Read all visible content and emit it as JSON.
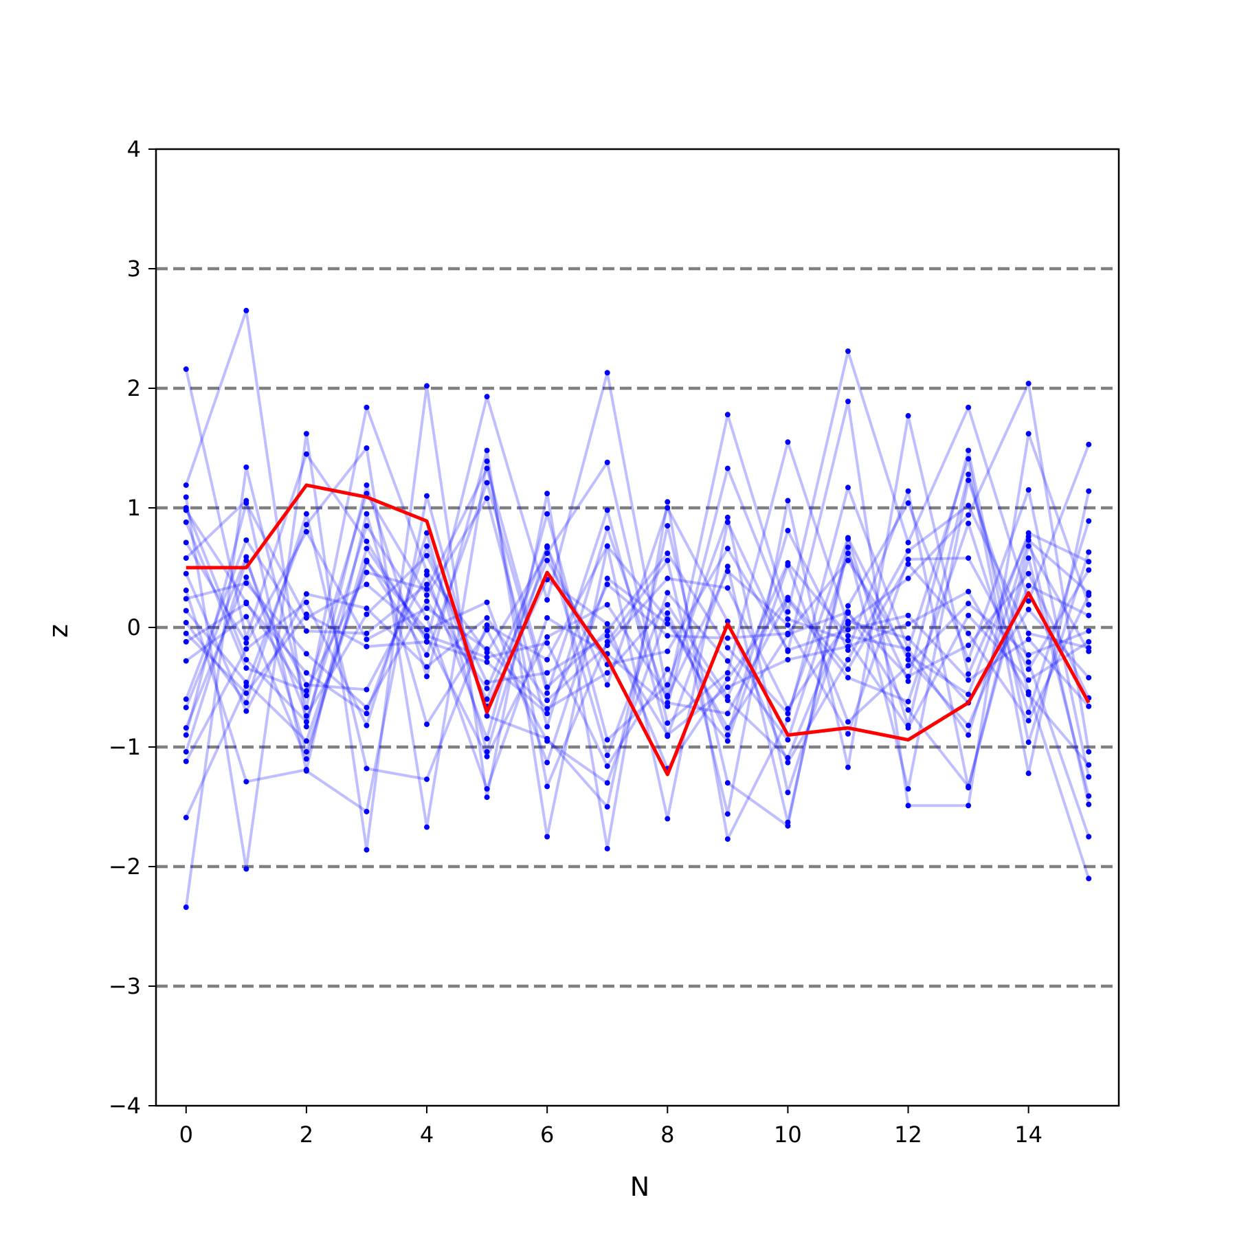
{
  "chart_data": {
    "type": "line",
    "title": "",
    "xlabel": "N",
    "ylabel": "z",
    "xlim": [
      -0.5,
      15.5
    ],
    "ylim": [
      -4,
      4
    ],
    "x_ticks": [
      0,
      2,
      4,
      6,
      8,
      10,
      12,
      14
    ],
    "x_tick_labels": [
      "0",
      "2",
      "4",
      "6",
      "8",
      "10",
      "12",
      "14"
    ],
    "y_ticks": [
      -4,
      -3,
      -2,
      -1,
      0,
      1,
      2,
      3,
      4
    ],
    "y_tick_labels": [
      "−4",
      "−3",
      "−2",
      "−1",
      "0",
      "1",
      "2",
      "3",
      "4"
    ],
    "reference_lines": {
      "y": [
        -3,
        -2,
        -1,
        0,
        1,
        2,
        3
      ],
      "style": "dashed",
      "color": "#808080"
    },
    "colors": {
      "samples": "#0000ff",
      "mean": "#ff0000",
      "reference": "#808080"
    },
    "x": [
      0,
      1,
      2,
      3,
      4,
      5,
      6,
      7,
      8,
      9,
      10,
      11,
      12,
      13,
      14,
      15
    ],
    "highlight_series": {
      "values": [
        0.5,
        0.5,
        1.19,
        1.09,
        0.89,
        -0.71,
        0.46,
        -0.26,
        -1.23,
        0.03,
        -0.9,
        -0.84,
        -0.94,
        -0.63,
        0.29,
        -0.63
      ]
    },
    "series": [
      {
        "values": [
          2.16,
          -0.09,
          1.45,
          0.72,
          -0.12,
          1.93,
          0.23,
          2.13,
          -0.57,
          1.78,
          0.13,
          2.31,
          0.71,
          1.84,
          0.22,
          1.53
        ]
      },
      {
        "values": [
          -2.34,
          1.34,
          -0.67,
          1.84,
          0.47,
          -0.21,
          0.62,
          1.38,
          -0.8,
          -0.38,
          1.55,
          0.03,
          0.41,
          0.94,
          2.04,
          -1.04
        ]
      },
      {
        "values": [
          1.19,
          2.65,
          -0.83,
          1.19,
          -0.41,
          1.48,
          -1.75,
          0.68,
          -1.6,
          0.88,
          -0.2,
          1.89,
          -1.49,
          -1.49,
          1.62,
          0.19
        ]
      },
      {
        "values": [
          1.09,
          -2.02,
          1.62,
          -1.86,
          2.02,
          -1.42,
          1.12,
          -1.85,
          1.05,
          -1.77,
          -0.77,
          1.17,
          -0.18,
          1.41,
          -1.22,
          1.14
        ]
      },
      {
        "values": [
          -1.59,
          -0.49,
          0.86,
          1.5,
          -1.67,
          1.39,
          -1.33,
          -0.12,
          0.56,
          -1.56,
          1.06,
          -1.17,
          1.77,
          -0.39,
          0.76,
          -1.48
        ]
      },
      {
        "values": [
          0.58,
          1.06,
          -1.2,
          -1.54,
          1.1,
          -0.74,
          -0.93,
          -1.5,
          0.85,
          -1.3,
          -1.66,
          0.74,
          -0.82,
          1.28,
          -0.54,
          -2.1
        ]
      },
      {
        "values": [
          -0.67,
          0.59,
          -1.04,
          0.56,
          -0.23,
          1.21,
          -0.55,
          0.98,
          -0.91,
          0.51,
          -1.63,
          0.67,
          -1.35,
          1.23,
          -0.29,
          -1.75
        ]
      },
      {
        "values": [
          0.31,
          -1.29,
          -1.19,
          0.95,
          -0.81,
          -0.02,
          -0.95,
          -1.3,
          0.12,
          -0.9,
          0.81,
          -0.19,
          1.14,
          -1.34,
          0.68,
          -0.2
        ]
      },
      {
        "values": [
          -0.84,
          0.42,
          -0.48,
          -0.52,
          0.44,
          -0.93,
          0.95,
          -0.94,
          -0.48,
          0.92,
          -1.38,
          0.18,
          1.04,
          -0.27,
          1.15,
          -1.25
        ]
      },
      {
        "values": [
          0.98,
          0.21,
          -0.57,
          1.12,
          0.27,
          1.08,
          -0.83,
          0.83,
          -0.63,
          -0.72,
          0.23,
          -0.42,
          -0.62,
          0.87,
          -0.71,
          0.89
        ]
      },
      {
        "values": [
          -1.12,
          -0.18,
          0.21,
          -0.82,
          0.79,
          -1.04,
          0.68,
          -1.07,
          0.29,
          -0.28,
          -0.94,
          0.62,
          -0.45,
          1.48,
          -0.96,
          0.63
        ]
      },
      {
        "values": [
          0.14,
          -0.46,
          -0.95,
          0.55,
          -0.02,
          0.21,
          -1.13,
          0.41,
          0.03,
          -0.61,
          -1.09,
          0.12,
          -0.41,
          -0.15,
          0.45,
          -0.59
        ]
      },
      {
        "values": [
          -0.28,
          0.09,
          -1.1,
          0.66,
          -0.08,
          -1.08,
          -0.08,
          0.19,
          -0.58,
          0.47,
          0.02,
          -0.89,
          0.57,
          0.58,
          -0.35,
          0.48
        ]
      },
      {
        "values": [
          0.71,
          -0.13,
          0.8,
          -0.1,
          0.16,
          -0.18,
          -0.68,
          -0.38,
          0.19,
          -0.58,
          0.54,
          -0.07,
          -0.18,
          -0.9,
          0.73,
          0.29
        ]
      },
      {
        "values": [
          -1.04,
          0.56,
          -0.74,
          0.11,
          0.6,
          -0.46,
          -0.38,
          -0.07,
          -0.9,
          -0.5,
          -0.27,
          -0.16,
          0.03,
          0.3,
          -0.56,
          -1.15
        ]
      },
      {
        "values": [
          0.04,
          -0.63,
          0.95,
          -1.18,
          -1.27,
          0.02,
          -0.27,
          0.68,
          0.07,
          -0.84,
          -0.06,
          0.13,
          -0.69,
          -1.33,
          0.58,
          -1.41
        ]
      },
      {
        "values": [
          -0.6,
          0.73,
          -0.03,
          -0.05,
          0.36,
          -0.6,
          0.56,
          -0.31,
          -0.2,
          0.66,
          -0.19,
          -0.02,
          0.1,
          -0.44,
          -0.1,
          -0.66
        ]
      },
      {
        "values": [
          1.0,
          -0.27,
          -0.79,
          0.85,
          0.08,
          -1.35,
          0.08,
          -0.22,
          -0.66,
          1.33,
          0.07,
          -0.11,
          -0.84,
          0.1,
          -0.44,
          -0.12
        ]
      },
      {
        "values": [
          -0.05,
          -0.55,
          0.11,
          -0.16,
          -0.12,
          -0.29,
          -0.72,
          0.36,
          -0.07,
          -0.09,
          -0.05,
          0.56,
          -0.23,
          -0.56,
          0.79,
          0.55
        ]
      },
      {
        "values": [
          0.24,
          0.37,
          -0.22,
          -0.67,
          0.22,
          -0.51,
          0.67,
          -0.48,
          1.0,
          0.05,
          -1.13,
          -0.27,
          0.64,
          1.02,
          -0.05,
          -0.17
        ]
      },
      {
        "values": [
          -0.9,
          1.04,
          0.08,
          0.36,
          -0.07,
          -0.25,
          -0.13,
          -1.16,
          -0.35,
          -0.95,
          0.52,
          -0.79,
          -0.32,
          0.2,
          -0.23,
          -0.03
        ]
      },
      {
        "values": [
          0.88,
          -0.34,
          -0.53,
          0.46,
          0.32,
          1.33,
          -0.5,
          -0.03,
          0.62,
          -0.17,
          -0.72,
          0.75,
          -0.27,
          -0.82,
          0.35,
          0.1
        ]
      },
      {
        "values": [
          -0.12,
          0.2,
          -0.38,
          -0.72,
          0.68,
          -0.66,
          0.4,
          0.03,
          -1.18,
          -0.43,
          0.25,
          -0.35,
          0.53,
          -0.05,
          -0.78,
          0.27
        ]
      },
      {
        "values": [
          0.45,
          -0.7,
          0.28,
          0.16,
          -0.33,
          0.08,
          -0.61,
          -0.15,
          0.41,
          0.33,
          -0.68,
          0.05,
          -0.09,
          -0.63,
          0.15,
          -0.42
        ]
      }
    ]
  }
}
